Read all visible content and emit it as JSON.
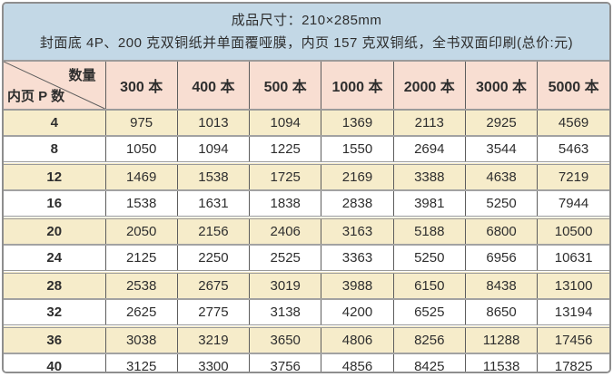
{
  "header": {
    "line1": "成品尺寸：210×285mm",
    "line2": "封面底 4P、200 克双铜纸并单面覆哑膜，内页 157 克双铜纸，全书双面印刷(总价:元)"
  },
  "table": {
    "corner": {
      "top_right": "数量",
      "bottom_left": "内页 P 数"
    },
    "columns": [
      "300 本",
      "400 本",
      "500 本",
      "1000 本",
      "2000 本",
      "3000 本",
      "5000 本"
    ],
    "rows": [
      {
        "label": "4",
        "values": [
          975,
          1013,
          1094,
          1369,
          2113,
          2925,
          4569
        ]
      },
      {
        "label": "8",
        "values": [
          1050,
          1094,
          1225,
          1550,
          2694,
          3544,
          5463
        ]
      },
      {
        "label": "12",
        "values": [
          1469,
          1538,
          1725,
          2169,
          3388,
          4638,
          7219
        ]
      },
      {
        "label": "16",
        "values": [
          1538,
          1631,
          1838,
          2838,
          3981,
          5250,
          7944
        ]
      },
      {
        "label": "20",
        "values": [
          2050,
          2156,
          2406,
          3163,
          5188,
          6800,
          10500
        ]
      },
      {
        "label": "24",
        "values": [
          2125,
          2250,
          2525,
          3363,
          5250,
          6956,
          10631
        ]
      },
      {
        "label": "28",
        "values": [
          2538,
          2675,
          3019,
          3988,
          6150,
          8438,
          13100
        ]
      },
      {
        "label": "32",
        "values": [
          2625,
          2775,
          3138,
          4200,
          6525,
          8650,
          13194
        ]
      },
      {
        "label": "36",
        "values": [
          3038,
          3219,
          3650,
          4806,
          8256,
          11288,
          17456
        ]
      },
      {
        "label": "40",
        "values": [
          3125,
          3300,
          3756,
          4856,
          8425,
          11538,
          17825
        ]
      }
    ]
  },
  "chart_data": {
    "type": "table",
    "title": "成品尺寸：210×285mm",
    "subtitle": "封面底 4P、200 克双铜纸并单面覆哑膜，内页 157 克双铜纸，全书双面印刷(总价:元)",
    "row_axis_label": "内页 P 数",
    "column_axis_label": "数量",
    "categories": [
      "300 本",
      "400 本",
      "500 本",
      "1000 本",
      "2000 本",
      "3000 本",
      "5000 本"
    ],
    "series": [
      {
        "name": "4",
        "values": [
          975,
          1013,
          1094,
          1369,
          2113,
          2925,
          4569
        ]
      },
      {
        "name": "8",
        "values": [
          1050,
          1094,
          1225,
          1550,
          2694,
          3544,
          5463
        ]
      },
      {
        "name": "12",
        "values": [
          1469,
          1538,
          1725,
          2169,
          3388,
          4638,
          7219
        ]
      },
      {
        "name": "16",
        "values": [
          1538,
          1631,
          1838,
          2838,
          3981,
          5250,
          7944
        ]
      },
      {
        "name": "20",
        "values": [
          2050,
          2156,
          2406,
          3163,
          5188,
          6800,
          10500
        ]
      },
      {
        "name": "24",
        "values": [
          2125,
          2250,
          2525,
          3363,
          5250,
          6956,
          10631
        ]
      },
      {
        "name": "28",
        "values": [
          2538,
          2675,
          3019,
          3988,
          6150,
          8438,
          13100
        ]
      },
      {
        "name": "32",
        "values": [
          2625,
          2775,
          3138,
          4200,
          6525,
          8650,
          13194
        ]
      },
      {
        "name": "36",
        "values": [
          3038,
          3219,
          3650,
          4806,
          8256,
          11288,
          17456
        ]
      },
      {
        "name": "40",
        "values": [
          3125,
          3300,
          3756,
          4856,
          8425,
          11538,
          17825
        ]
      }
    ]
  },
  "colors": {
    "header_bg": "#c3d8e6",
    "column_header_bg": "#f8ded2",
    "shade_row_bg": "#f6ecca",
    "plain_row_bg": "#ffffff",
    "frame_border": "#8e8e8e",
    "text": "#2e2e2e"
  }
}
